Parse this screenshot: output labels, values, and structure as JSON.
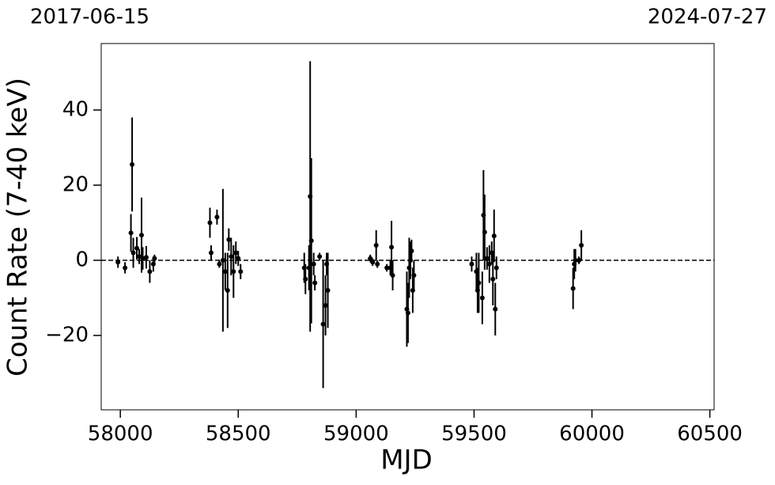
{
  "chart_data": {
    "type": "errorbar",
    "xlabel": "MJD",
    "ylabel": "Count Rate (7-40 keV)",
    "corner_labels": {
      "left": "2017-06-15",
      "right": "2024-07-27"
    },
    "color": "#000000",
    "hline": 0,
    "xlim": [
      57919,
      60518
    ],
    "ylim": [
      -39.8,
      57.7
    ],
    "xticks": [
      58000,
      58500,
      59000,
      59500,
      60000,
      60500
    ],
    "yticks": [
      {
        "value": -20,
        "label": "−20"
      },
      0,
      20,
      40
    ],
    "x": [
      57990,
      58020,
      58045,
      58050,
      58055,
      58070,
      58080,
      58090,
      58095,
      58110,
      58125,
      58140,
      58145,
      58380,
      58385,
      58410,
      58420,
      58435,
      58445,
      58455,
      58460,
      58470,
      58480,
      58490,
      58500,
      58510,
      58780,
      58785,
      58800,
      58805,
      58810,
      58820,
      58825,
      58845,
      58860,
      58870,
      58875,
      58880,
      59060,
      59070,
      59085,
      59090,
      59130,
      59145,
      59150,
      59155,
      59215,
      59220,
      59225,
      59230,
      59235,
      59240,
      59245,
      59490,
      59510,
      59515,
      59520,
      59535,
      59540,
      59545,
      59555,
      59565,
      59575,
      59580,
      59585,
      59590,
      59595,
      59920,
      59925,
      59930,
      59945,
      59955
    ],
    "y": [
      -0.5,
      -2,
      7.3,
      25.5,
      2,
      3.2,
      1,
      6.7,
      0.5,
      0.8,
      -3,
      -1,
      0.5,
      10,
      2,
      11.5,
      -1,
      0,
      -3,
      -8,
      5.5,
      1,
      -3,
      2,
      0.5,
      -3,
      -2,
      -5,
      -2,
      17,
      5.2,
      -1,
      -6,
      1,
      -17,
      -12,
      -1,
      -8,
      0.5,
      -0.5,
      4,
      -1,
      -2,
      -2,
      3.5,
      -4,
      -13,
      -14,
      -2,
      0,
      2.5,
      -8,
      -4,
      -1,
      -3,
      -8,
      -6,
      -10,
      12,
      7.5,
      0.5,
      -1,
      2,
      -5,
      6.5,
      -13,
      -2,
      -7.5,
      -1,
      0,
      0,
      4
    ],
    "yerr": [
      1.5,
      1.5,
      5,
      12.5,
      4,
      3,
      2,
      10,
      3,
      3,
      3,
      2,
      1,
      4,
      2,
      2,
      1,
      19,
      5,
      10,
      3,
      5,
      7,
      3,
      2,
      2,
      4,
      4,
      6,
      36,
      22,
      3,
      2,
      1,
      17,
      8,
      3,
      10,
      1,
      1,
      4,
      1,
      1,
      2,
      7,
      4,
      10,
      8,
      8,
      5,
      3,
      6,
      4,
      2,
      5,
      6,
      8,
      7,
      12,
      10,
      3,
      5,
      3,
      7,
      7,
      7,
      3,
      5.5,
      4,
      3,
      1,
      4
    ]
  }
}
